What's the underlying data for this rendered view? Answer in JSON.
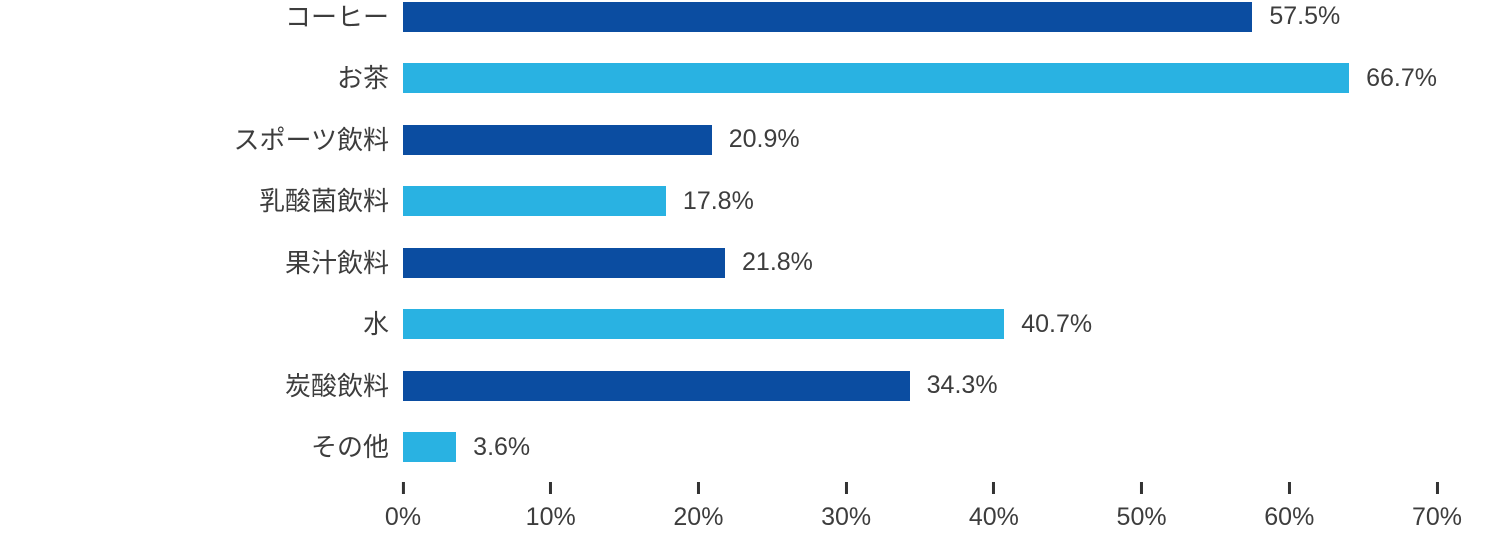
{
  "chart_data": {
    "type": "bar",
    "orientation": "horizontal",
    "title": "",
    "xlabel": "",
    "ylabel": "",
    "categories": [
      "コーヒー",
      "お茶",
      "スポーツ飲料",
      "乳酸菌飲料",
      "果汁飲料",
      "水",
      "炭酸飲料",
      "その他"
    ],
    "values": [
      57.5,
      66.7,
      20.9,
      17.8,
      21.8,
      40.7,
      34.3,
      3.6
    ],
    "value_labels": [
      "57.5%",
      "66.7%",
      "20.9%",
      "17.8%",
      "21.8%",
      "40.7%",
      "34.3%",
      "3.6%"
    ],
    "xlim": [
      0,
      70
    ],
    "x_ticks": [
      "0%",
      "10%",
      "20%",
      "30%",
      "40%",
      "50%",
      "60%",
      "70%"
    ],
    "grid": false,
    "legend": false,
    "colors": {
      "bar_dark": "#0b4da1",
      "bar_light": "#29b2e2",
      "text": "#3d3d3d",
      "tick_mark": "#333333",
      "background": "#ffffff"
    }
  }
}
